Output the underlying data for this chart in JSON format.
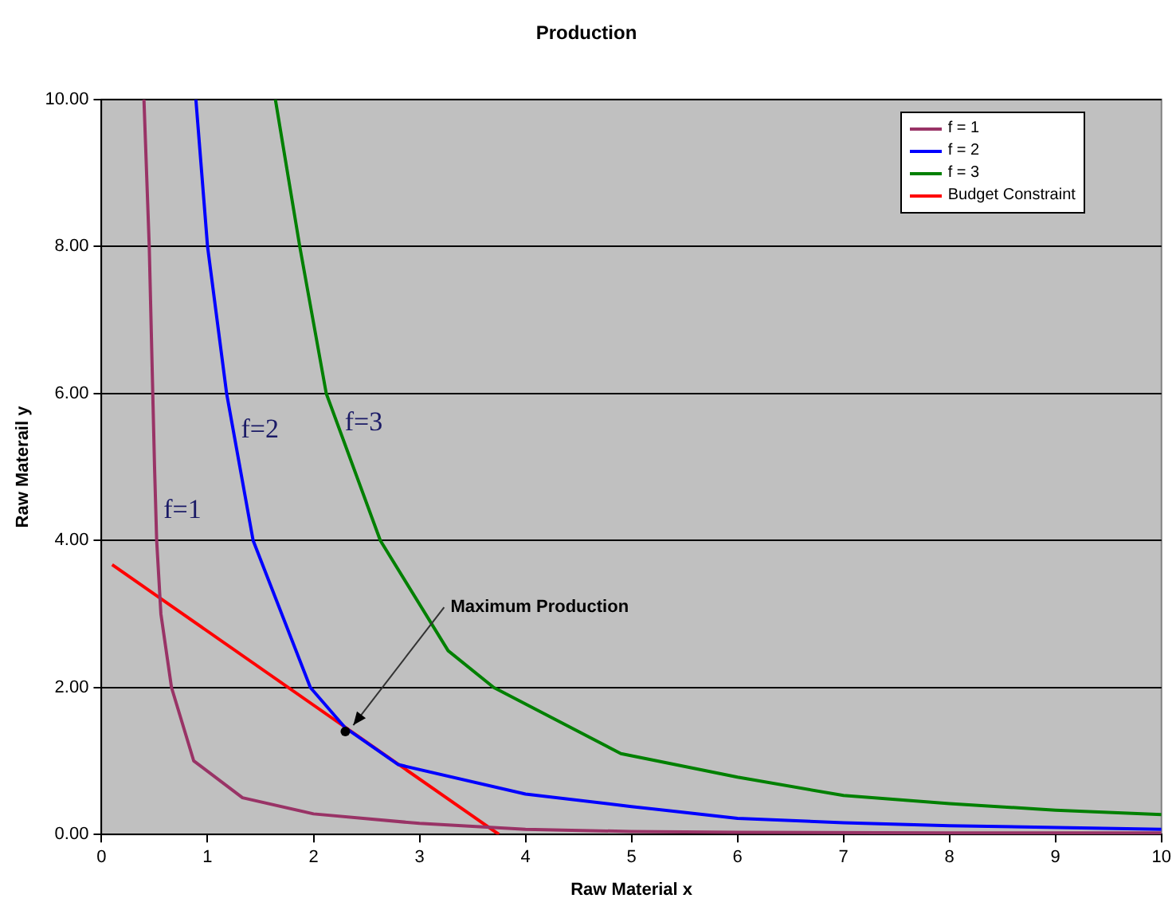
{
  "chart_data": {
    "type": "line",
    "title": "Production",
    "xlabel": "Raw Material x",
    "ylabel": "Raw Materail y",
    "xlim": [
      0,
      10
    ],
    "xticks": [
      0,
      1,
      2,
      3,
      4,
      5,
      6,
      7,
      8,
      9,
      10
    ],
    "ylim": [
      0,
      10
    ],
    "yticks": [
      {
        "value": 0,
        "label": "0.00"
      },
      {
        "value": 2,
        "label": "2.00"
      },
      {
        "value": 4,
        "label": "4.00"
      },
      {
        "value": 6,
        "label": "6.00"
      },
      {
        "value": 8,
        "label": "8.00"
      },
      {
        "value": 10,
        "label": "10.00"
      }
    ],
    "grid": "y",
    "legend": "top right",
    "marker": "none",
    "line_style": "solid",
    "series": [
      {
        "name": "f = 1",
        "color": "#993366",
        "x": [
          0.4,
          0.45,
          0.5,
          0.52,
          0.56,
          0.66,
          0.87,
          1.33,
          2,
          3,
          4,
          5,
          6,
          8,
          10
        ],
        "values": [
          10,
          8,
          5,
          4,
          3,
          2,
          1,
          0.5,
          0.28,
          0.15,
          0.07,
          0.04,
          0.03,
          0.02,
          0.02
        ]
      },
      {
        "name": "f = 2",
        "color": "#0000ff",
        "x": [
          0.89,
          1,
          1.18,
          1.43,
          1.97,
          2.3,
          2.8,
          4,
          5,
          6,
          7,
          8,
          10
        ],
        "values": [
          10,
          8,
          6,
          4,
          2,
          1.45,
          0.95,
          0.55,
          0.38,
          0.22,
          0.16,
          0.12,
          0.07
        ]
      },
      {
        "name": "f = 3",
        "color": "#008000",
        "x": [
          1.64,
          1.87,
          2.12,
          2.63,
          3.27,
          3.7,
          4.9,
          6,
          7,
          8,
          9,
          10
        ],
        "values": [
          10,
          8,
          6,
          4,
          2.5,
          2,
          1.1,
          0.78,
          0.53,
          0.42,
          0.33,
          0.27
        ]
      },
      {
        "name": "Budget Constraint",
        "color": "#ff0000",
        "x": [
          0.1,
          3.75
        ],
        "values": [
          3.67,
          0
        ]
      }
    ],
    "annotations": [
      {
        "text": "f=1",
        "x": 0.51,
        "y": 4.4
      },
      {
        "text": "f=2",
        "x": 1.24,
        "y": 5.5
      },
      {
        "text": "f=3",
        "x": 2.22,
        "y": 5.6
      },
      {
        "text": "Maximum Production",
        "x": 2.3,
        "y": 1.4
      }
    ]
  }
}
